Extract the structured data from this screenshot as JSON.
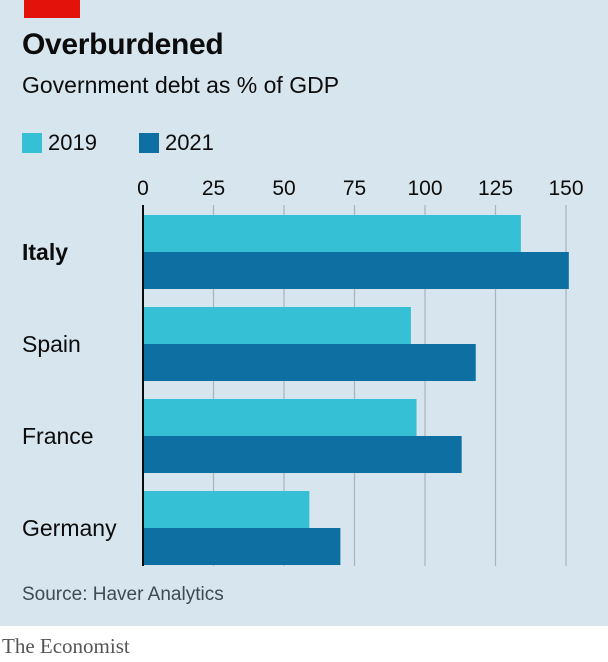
{
  "header": {
    "title": "Overburdened",
    "subtitle": "Government debt as % of GDP"
  },
  "legend": {
    "items": [
      {
        "label": "2019",
        "color": "#35c0d6"
      },
      {
        "label": "2021",
        "color": "#0e6fa3"
      }
    ]
  },
  "chart_data": {
    "type": "bar",
    "orientation": "horizontal",
    "categories": [
      "Italy",
      "Spain",
      "France",
      "Germany"
    ],
    "highlight_category": "Italy",
    "series": [
      {
        "name": "2019",
        "color": "#35c0d6",
        "values": [
          134,
          95,
          97,
          59
        ]
      },
      {
        "name": "2021",
        "color": "#0e6fa3",
        "values": [
          151,
          118,
          113,
          70
        ]
      }
    ],
    "xticks": [
      0,
      25,
      50,
      75,
      100,
      125,
      150
    ],
    "xlim": [
      0,
      150
    ],
    "grid": true,
    "legend_position": "top-left"
  },
  "source": "Source: Haver Analytics",
  "footer": "The Economist"
}
